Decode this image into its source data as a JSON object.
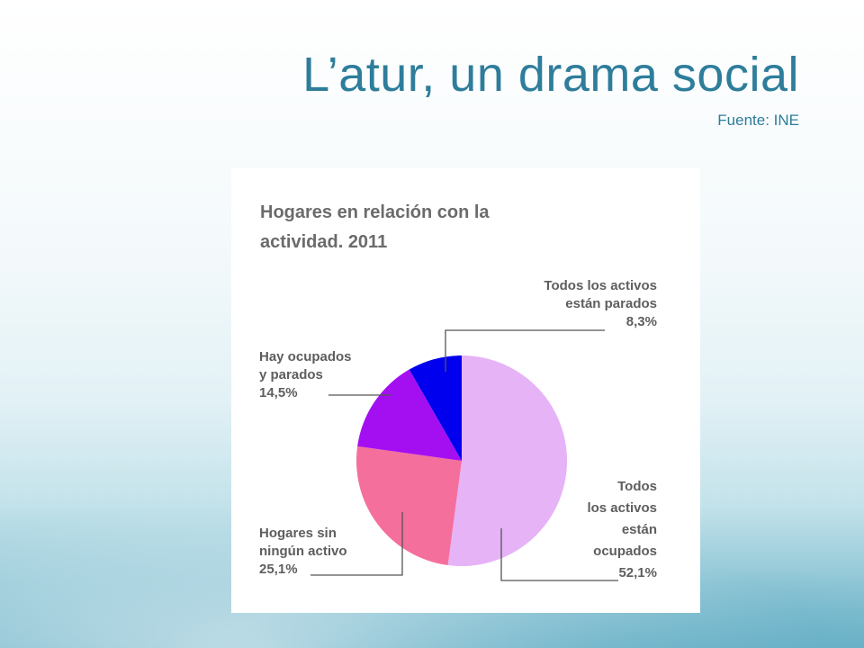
{
  "slide": {
    "title": "L’atur, un drama social",
    "subtitle": "Fuente: INE"
  },
  "chart_data": {
    "type": "pie",
    "title_lines": [
      "Hogares en relación con la",
      "actividad. 2011"
    ],
    "slices": [
      {
        "label_lines": [
          "Todos",
          "los activos",
          "están",
          "ocupados",
          "52,1%"
        ],
        "value": 52.1,
        "color": "#e6b3f7"
      },
      {
        "label_lines": [
          "Hogares sin",
          "ningún activo",
          "25,1%"
        ],
        "value": 25.1,
        "color": "#f56f9c"
      },
      {
        "label_lines": [
          "Hay ocupados",
          "y parados",
          "14,5%"
        ],
        "value": 14.5,
        "color": "#a40ff2"
      },
      {
        "label_lines": [
          "Todos los activos",
          "están parados",
          "8,3%"
        ],
        "value": 8.3,
        "color": "#0000ee"
      }
    ]
  }
}
